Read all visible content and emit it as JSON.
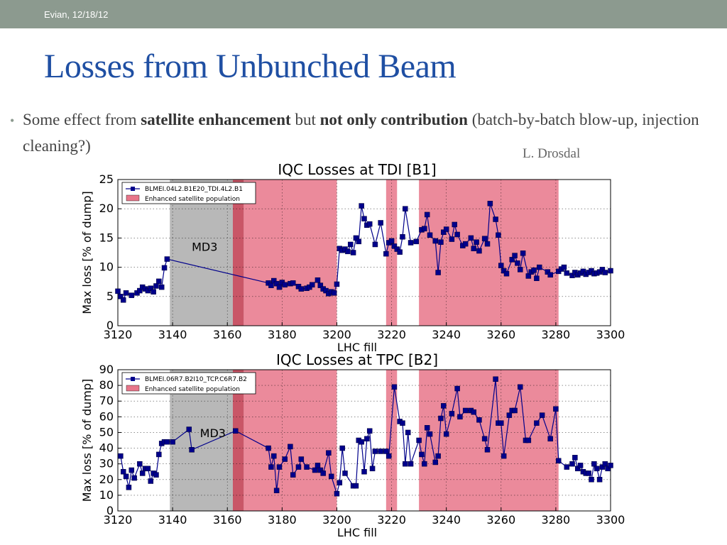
{
  "header": {
    "date_text": "Evian, 12/18/12"
  },
  "slide": {
    "title": "Losses from Unbunched Beam",
    "bullet": {
      "t1": "Some effect from ",
      "b1": "satellite enhancement",
      "t2": " but ",
      "b2": "not only contribution",
      "t3": " (batch-by-batch blow-up, injection cleaning?)"
    },
    "credit": "L. Drosdal"
  },
  "colors": {
    "series": "#00008b",
    "satellite_band": "#e8768a",
    "satellite_band_dark": "#c0384c",
    "md_band": "#b8b8b8"
  },
  "chart_data": [
    {
      "type": "line",
      "title": "IQC Losses at TDI [B1]",
      "xlabel": "LHC fill",
      "ylabel": "Max loss [% of dump]",
      "xlim": [
        3120,
        3300
      ],
      "ylim": [
        0,
        25
      ],
      "xticks": [
        3120,
        3140,
        3160,
        3180,
        3200,
        3220,
        3240,
        3260,
        3280,
        3300
      ],
      "yticks": [
        0,
        5,
        10,
        15,
        20,
        25
      ],
      "grid": true,
      "legend": {
        "placement": "top-left",
        "entries": [
          "BLMEI.04L2.B1E20_TDI.4L2.B1",
          "Enhanced satellite population"
        ]
      },
      "annotations": [
        {
          "text": "MD3",
          "x": 3147,
          "y": 12.8
        }
      ],
      "bands": [
        {
          "kind": "md",
          "from": 3139,
          "to": 3162
        },
        {
          "kind": "satellite_dark",
          "from": 3162,
          "to": 3166
        },
        {
          "kind": "satellite",
          "from": 3166,
          "to": 3200
        },
        {
          "kind": "satellite",
          "from": 3218,
          "to": 3222
        },
        {
          "kind": "satellite",
          "from": 3230,
          "to": 3281
        }
      ],
      "series": [
        {
          "name": "BLMEI.04L2.B1E20_TDI.4L2.B1",
          "x": [
            3120,
            3121,
            3122,
            3123,
            3125,
            3127,
            3128,
            3129,
            3130,
            3131,
            3132,
            3133,
            3134,
            3135,
            3136,
            3137,
            3138,
            3175,
            3176,
            3177,
            3178,
            3179,
            3180,
            3181,
            3183,
            3184,
            3186,
            3187,
            3189,
            3190,
            3191,
            3193,
            3194,
            3195,
            3196,
            3197,
            3198,
            3199,
            3200,
            3201,
            3202,
            3203,
            3204,
            3205,
            3206,
            3207,
            3208,
            3209,
            3210,
            3211,
            3212,
            3214,
            3216,
            3218,
            3219,
            3220,
            3221,
            3222,
            3223,
            3224,
            3225,
            3227,
            3229,
            3231,
            3232,
            3233,
            3234,
            3236,
            3237,
            3238,
            3239,
            3240,
            3242,
            3243,
            3244,
            3246,
            3247,
            3249,
            3250,
            3251,
            3252,
            3254,
            3255,
            3256,
            3258,
            3259,
            3260,
            3261,
            3262,
            3264,
            3265,
            3266,
            3267,
            3268,
            3270,
            3271,
            3272,
            3273,
            3274,
            3277,
            3278,
            3281,
            3282,
            3283,
            3284,
            3286,
            3287,
            3288,
            3289,
            3290,
            3291,
            3292,
            3293,
            3294,
            3295,
            3296,
            3297,
            3298,
            3300
          ],
          "y": [
            5.9,
            5.0,
            4.4,
            5.6,
            5.2,
            5.6,
            6.0,
            6.6,
            6.3,
            6.0,
            6.4,
            5.8,
            6.8,
            7.6,
            6.6,
            9.9,
            11.4,
            7.3,
            6.9,
            7.7,
            7.2,
            6.6,
            7.4,
            7.0,
            7.2,
            7.3,
            6.7,
            6.3,
            6.4,
            6.6,
            7.0,
            7.8,
            6.9,
            6.3,
            6.0,
            5.5,
            5.8,
            5.6,
            7.1,
            13.2,
            12.9,
            13.1,
            12.7,
            13.9,
            12.5,
            15.0,
            14.4,
            20.5,
            18.3,
            17.2,
            17.4,
            13.9,
            17.6,
            12.3,
            14.2,
            14.5,
            13.6,
            13.1,
            12.6,
            15.2,
            20.0,
            14.2,
            14.4,
            16.4,
            16.6,
            19.0,
            15.5,
            14.5,
            9.1,
            14.3,
            16.0,
            16.5,
            14.8,
            17.3,
            15.6,
            13.7,
            14.0,
            15.0,
            13.2,
            14.3,
            12.8,
            14.9,
            14.0,
            20.9,
            18.2,
            15.5,
            10.3,
            9.4,
            8.9,
            11.3,
            12.0,
            10.7,
            9.6,
            12.4,
            8.5,
            9.2,
            9.5,
            8.1,
            10.0,
            9.2,
            8.7,
            9.3,
            9.7,
            10.0,
            9.0,
            8.6,
            9.1,
            8.7,
            9.0,
            9.3,
            8.8,
            9.1,
            9.4,
            8.9,
            9.0,
            9.2,
            9.6,
            9.1,
            9.4
          ]
        }
      ]
    },
    {
      "type": "line",
      "title": "IQC Losses at TPC [B2]",
      "xlabel": "LHC fill",
      "ylabel": "Max loss [% of dump]",
      "xlim": [
        3120,
        3300
      ],
      "ylim": [
        0,
        90
      ],
      "xticks": [
        3120,
        3140,
        3160,
        3180,
        3200,
        3220,
        3240,
        3260,
        3280,
        3300
      ],
      "yticks": [
        0,
        10,
        20,
        30,
        40,
        50,
        60,
        70,
        80,
        90
      ],
      "grid": true,
      "legend": {
        "placement": "top-left",
        "entries": [
          "BLMEI.06R7.B2I10_TCP.C6R7.B2",
          "Enhanced satellite population"
        ]
      },
      "annotations": [
        {
          "text": "MD3",
          "x": 3150,
          "y": 47
        }
      ],
      "bands": [
        {
          "kind": "md",
          "from": 3139,
          "to": 3162
        },
        {
          "kind": "satellite_dark",
          "from": 3162,
          "to": 3166
        },
        {
          "kind": "satellite",
          "from": 3166,
          "to": 3200
        },
        {
          "kind": "satellite",
          "from": 3218,
          "to": 3222
        },
        {
          "kind": "satellite",
          "from": 3230,
          "to": 3281
        }
      ],
      "series": [
        {
          "name": "BLMEI.06R7.B2I10_TCP.C6R7.B2",
          "x": [
            3121,
            3122,
            3123,
            3124,
            3125,
            3126,
            3128,
            3129,
            3130,
            3131,
            3132,
            3133,
            3134,
            3135,
            3136,
            3137,
            3138,
            3140,
            3146,
            3147,
            3163,
            3175,
            3176,
            3177,
            3178,
            3179,
            3181,
            3183,
            3184,
            3186,
            3187,
            3189,
            3192,
            3193,
            3194,
            3195,
            3197,
            3198,
            3200,
            3201,
            3202,
            3203,
            3206,
            3207,
            3208,
            3209,
            3210,
            3211,
            3212,
            3213,
            3214,
            3216,
            3218,
            3219,
            3221,
            3223,
            3224,
            3225,
            3226,
            3227,
            3230,
            3231,
            3232,
            3233,
            3234,
            3236,
            3237,
            3238,
            3239,
            3240,
            3242,
            3244,
            3245,
            3247,
            3249,
            3250,
            3252,
            3254,
            3255,
            3258,
            3259,
            3260,
            3261,
            3263,
            3264,
            3265,
            3267,
            3269,
            3270,
            3273,
            3275,
            3278,
            3280,
            3281,
            3284,
            3286,
            3287,
            3288,
            3289,
            3290,
            3291,
            3292,
            3293,
            3294,
            3295,
            3296,
            3297,
            3298,
            3299,
            3300
          ],
          "y": [
            35,
            25,
            22,
            15,
            26,
            21,
            30,
            24,
            27,
            27,
            19,
            24,
            23,
            36,
            43,
            44,
            44,
            44,
            52,
            39,
            51,
            40,
            28,
            35,
            13,
            28,
            33,
            41,
            23,
            28,
            33,
            28,
            26,
            29,
            26,
            24,
            37,
            22,
            11,
            18,
            40,
            24,
            16,
            16,
            45,
            44,
            25,
            46,
            51,
            27,
            38,
            38,
            38,
            35,
            79,
            57,
            56,
            30,
            50,
            30,
            45,
            36,
            30,
            53,
            49,
            31,
            35,
            59,
            67,
            49,
            62,
            78,
            60,
            64,
            64,
            63,
            58,
            46,
            39,
            84,
            56,
            56,
            35,
            61,
            64,
            64,
            79,
            45,
            45,
            56,
            61,
            46,
            65,
            32,
            28,
            30,
            34,
            27,
            29,
            25,
            24,
            24,
            20,
            30,
            27,
            20,
            28,
            30,
            27,
            29
          ]
        }
      ]
    }
  ]
}
